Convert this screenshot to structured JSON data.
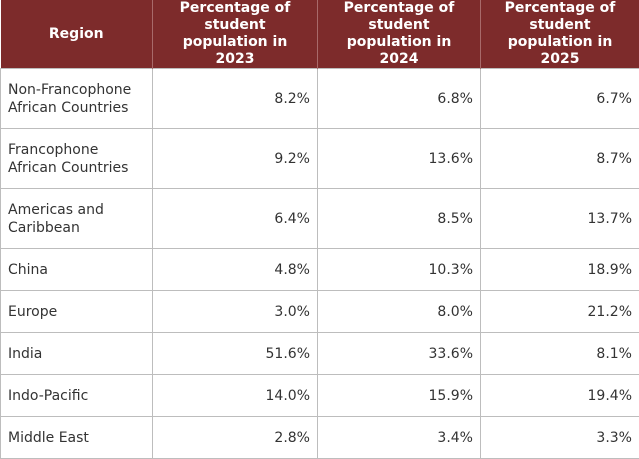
{
  "table": {
    "header": [
      "Region",
      "Percentage of student population in 2023",
      "Percentage of student population in 2024",
      "Percentage of student population in 2025"
    ],
    "rows": [
      [
        "Non-Francophone African Countries",
        "8.2%",
        "6.8%",
        "6.7%"
      ],
      [
        "Francophone African Countries",
        "9.2%",
        "13.6%",
        "8.7%"
      ],
      [
        "Americas and Caribbean",
        "6.4%",
        "8.5%",
        "13.7%"
      ],
      [
        "China",
        "4.8%",
        "10.3%",
        "18.9%"
      ],
      [
        "Europe",
        "3.0%",
        "8.0%",
        "21.2%"
      ],
      [
        "India",
        "51.6%",
        "33.6%",
        "8.1%"
      ],
      [
        "Indo-Pacific",
        "14.0%",
        "15.9%",
        "19.4%"
      ],
      [
        "Middle East",
        "2.8%",
        "3.4%",
        "3.3%"
      ]
    ]
  }
}
